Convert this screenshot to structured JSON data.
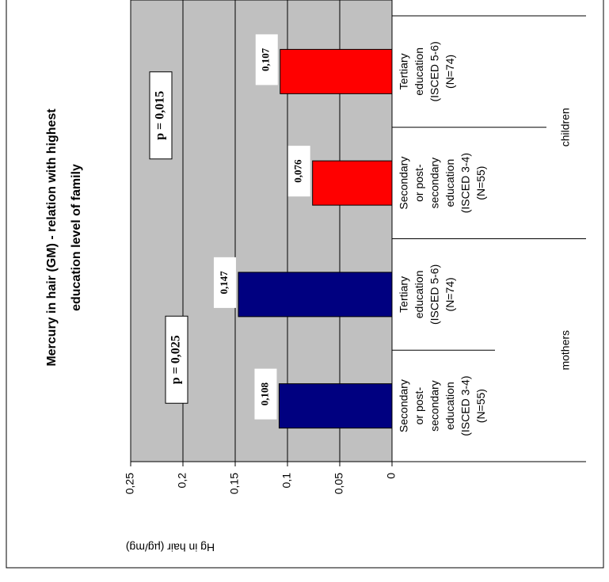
{
  "chart_data": {
    "type": "bar",
    "title": [
      "Mercury in hair (GM) - relation with highest",
      "education level of family"
    ],
    "y_label": "Hg in hair (µg/mg)",
    "categories": [
      [
        "Secondary",
        "or post-",
        "secondary",
        "education",
        "(ISCED 3-4)",
        "(N=55)"
      ],
      [
        "Tertiary",
        "education",
        "(ISCED 5-6)",
        "(N=74)"
      ],
      [
        "Secondary",
        "or post-",
        "secondary",
        "education",
        "(ISCED 3-4)",
        "(N=55)"
      ],
      [
        "Tertiary",
        "education",
        "(ISCED 5-6)",
        "(N=74)"
      ]
    ],
    "series": [
      {
        "name": "mothers",
        "color": "#000080",
        "values": [
          0.108,
          0.147,
          null,
          null
        ],
        "value_labels": [
          "0,108",
          "0,147",
          null,
          null
        ]
      },
      {
        "name": "children",
        "color": "#ff0000",
        "values": [
          null,
          null,
          0.076,
          0.107
        ],
        "value_labels": [
          null,
          null,
          "0,076",
          "0,107"
        ]
      }
    ],
    "annotations": [
      "p = 0,025",
      "p = 0,015"
    ],
    "ylim": [
      0,
      0.25
    ],
    "yticks": [
      0,
      {
        "value": 0.05,
        "label": "0,05"
      },
      {
        "value": 0.1,
        "label": "0,1"
      },
      {
        "value": 0.15,
        "label": "0,15"
      },
      {
        "value": 0.2,
        "label": "0,2"
      },
      {
        "value": 0.25,
        "label": "0,25"
      }
    ],
    "grid": true
  }
}
